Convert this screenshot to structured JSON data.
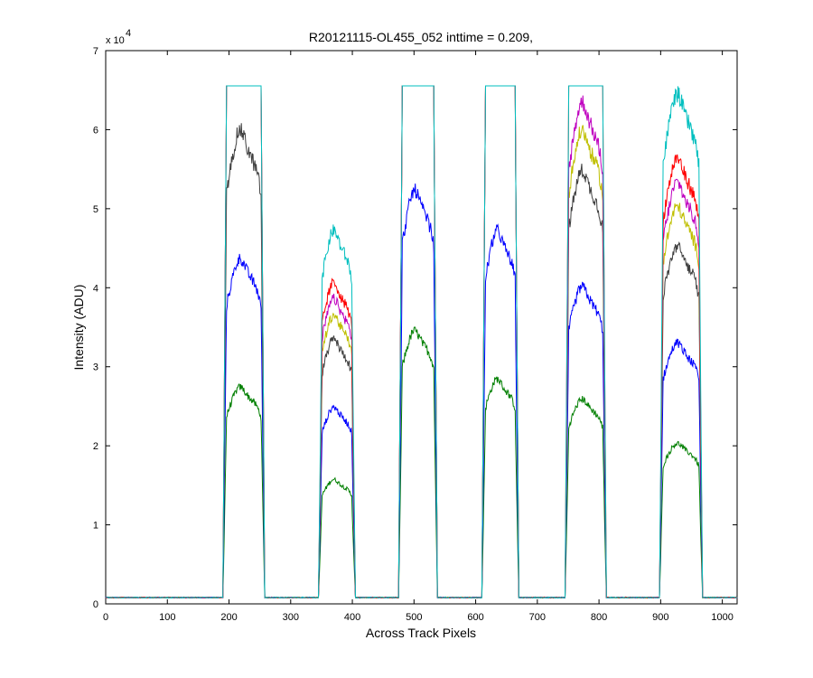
{
  "chart_data": {
    "type": "line",
    "title": "R20121115-OL455_052 inttime = 0.209,",
    "xlabel": "Across Track Pixels",
    "ylabel": "Intensity (ADU)",
    "xlim": [
      0,
      1024
    ],
    "ylim": [
      0,
      70000
    ],
    "y_exponent_label": "x 10",
    "y_exponent": "4",
    "grid": false,
    "xticks": [
      0,
      100,
      200,
      300,
      400,
      500,
      600,
      700,
      800,
      900,
      1000
    ],
    "xtick_labels": [
      "0",
      "100",
      "200",
      "300",
      "400",
      "500",
      "600",
      "700",
      "800",
      "900",
      "1000"
    ],
    "yticks": [
      0,
      10000,
      20000,
      30000,
      40000,
      50000,
      60000,
      70000
    ],
    "ytick_labels": [
      "0",
      "1",
      "2",
      "3",
      "4",
      "5",
      "6",
      "7"
    ],
    "baseline": 800,
    "saturation": 65535,
    "bands": [
      {
        "start": 190,
        "end": 258
      },
      {
        "start": 345,
        "end": 405
      },
      {
        "start": 475,
        "end": 538
      },
      {
        "start": 610,
        "end": 670
      },
      {
        "start": 745,
        "end": 812
      },
      {
        "start": 898,
        "end": 968
      }
    ],
    "series": [
      {
        "color": "#007f00",
        "plateaus": [
          27000,
          15500,
          34000,
          28000,
          25500,
          20000
        ]
      },
      {
        "color": "#0000ff",
        "plateaus": [
          43000,
          24500,
          51500,
          46500,
          39500,
          32500
        ]
      },
      {
        "color": "#3f3f3f",
        "plateaus": [
          59000,
          33000,
          65535,
          65535,
          54000,
          44500
        ]
      },
      {
        "color": "#bfbf00",
        "plateaus": [
          65535,
          36000,
          65535,
          65535,
          59000,
          49500
        ]
      },
      {
        "color": "#bf00bf",
        "plateaus": [
          65535,
          38000,
          65535,
          65535,
          62500,
          52500
        ]
      },
      {
        "color": "#ff0000",
        "plateaus": [
          65535,
          40000,
          65535,
          65535,
          65535,
          55500
        ]
      },
      {
        "color": "#00bfbf",
        "plateaus": [
          65535,
          46500,
          65535,
          65535,
          65535,
          63500
        ]
      }
    ]
  }
}
